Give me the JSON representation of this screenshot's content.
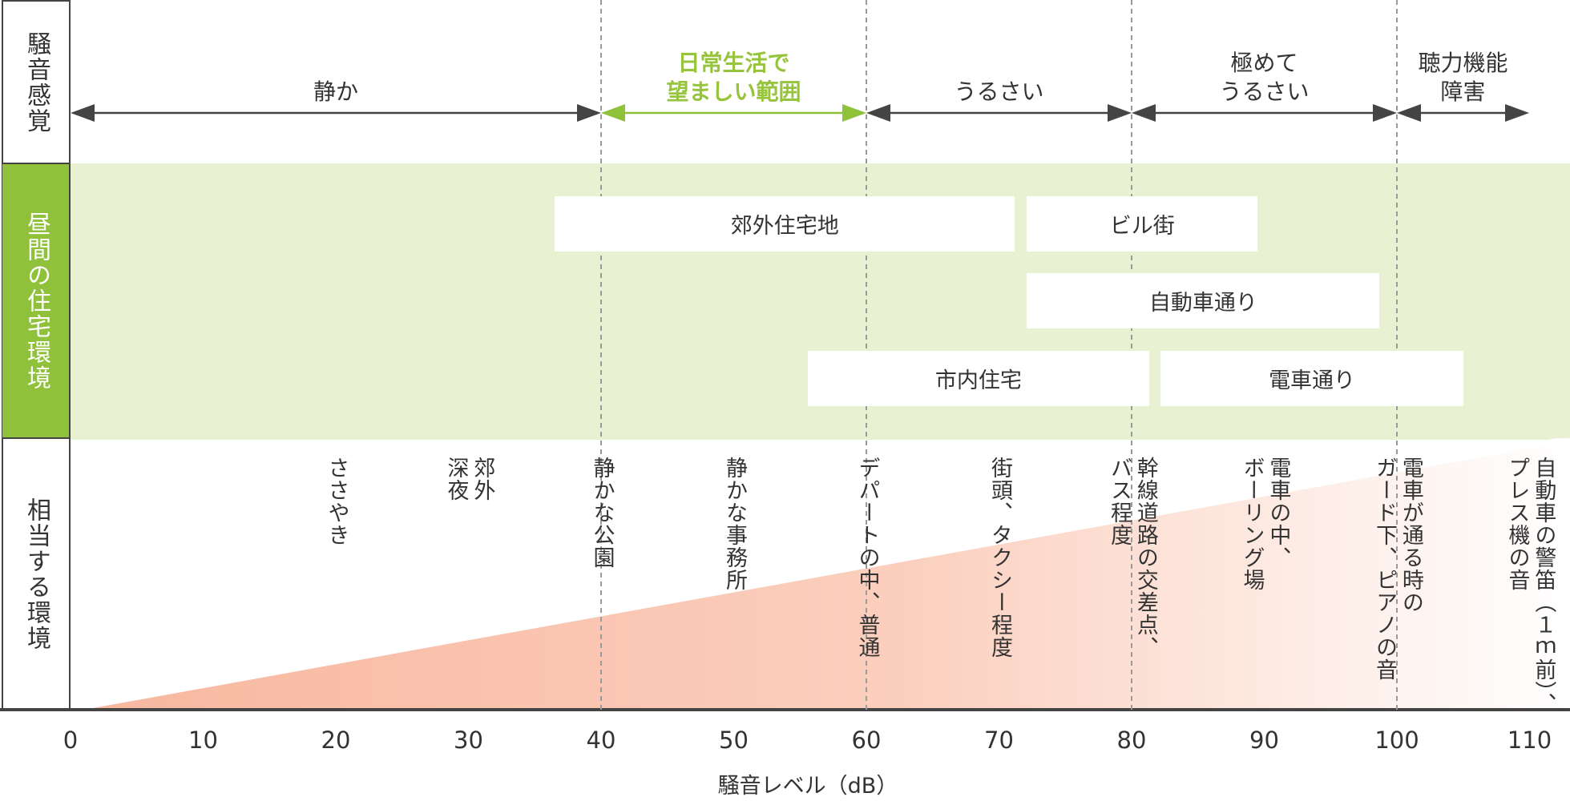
{
  "colors": {
    "green_band": "#e8f1d2",
    "green_dark": "#8fc13a",
    "green_text": "#96c43c",
    "gradient": "#f9bda6",
    "line": "#444444",
    "dash": "#9a9a9a"
  },
  "row_labels": {
    "noise_feeling": "騒音感覚",
    "daytime_residential": "昼間の住宅環境",
    "equivalent_environment": "相当する環境"
  },
  "feelings": [
    {
      "label": "静か",
      "from": 0,
      "to": 40,
      "highlight": false
    },
    {
      "label": "日常生活で\n望ましい範囲",
      "from": 40,
      "to": 60,
      "highlight": true
    },
    {
      "label": "うるさい",
      "from": 60,
      "to": 80,
      "highlight": false
    },
    {
      "label": "極めて\nうるさい",
      "from": 80,
      "to": 100,
      "highlight": false
    },
    {
      "label": "聴力機能\n障害",
      "from": 100,
      "to": 110,
      "highlight": false
    }
  ],
  "residential": [
    {
      "label": "郊外住宅地",
      "from": 36.5,
      "to": 71.2,
      "row": 0
    },
    {
      "label": "ビル街",
      "from": 72.1,
      "to": 89.5,
      "row": 0
    },
    {
      "label": "自動車通り",
      "from": 72.1,
      "to": 98.7,
      "row": 1
    },
    {
      "label": "市内住宅",
      "from": 55.6,
      "to": 81.3,
      "row": 2
    },
    {
      "label": "電車通り",
      "from": 82.2,
      "to": 105.0,
      "row": 2
    }
  ],
  "environments": [
    {
      "db": 20,
      "label": "ささやき"
    },
    {
      "db": 30,
      "label": "郊外\n深夜"
    },
    {
      "db": 40,
      "label": "静かな公園"
    },
    {
      "db": 50,
      "label": "静かな事務所"
    },
    {
      "db": 60,
      "label": "デパートの中、普通"
    },
    {
      "db": 70,
      "label": "街頭、タクシー程度"
    },
    {
      "db": 80,
      "label": "幹線道路の交差点、\nバス程度"
    },
    {
      "db": 90,
      "label": "電車の中、\nボーリング場"
    },
    {
      "db": 100,
      "label": "電車が通る時の\nガード下、ピアノの音"
    },
    {
      "db": 110,
      "label": "自動車の警笛（１ｍ前）、\nプレス機の音"
    }
  ],
  "chart_data": {
    "type": "scale-diagram",
    "xlabel": "騒音レベル（dB）",
    "ticks": [
      0,
      10,
      20,
      30,
      40,
      50,
      60,
      70,
      80,
      90,
      100,
      110
    ],
    "tick_labels": [
      "0",
      "10",
      "20",
      "30",
      "40",
      "50",
      "60",
      "70",
      "80",
      "90",
      "100",
      "110"
    ],
    "xlim": [
      0,
      110
    ],
    "threshold_lines": [
      40,
      60,
      80,
      100
    ]
  }
}
